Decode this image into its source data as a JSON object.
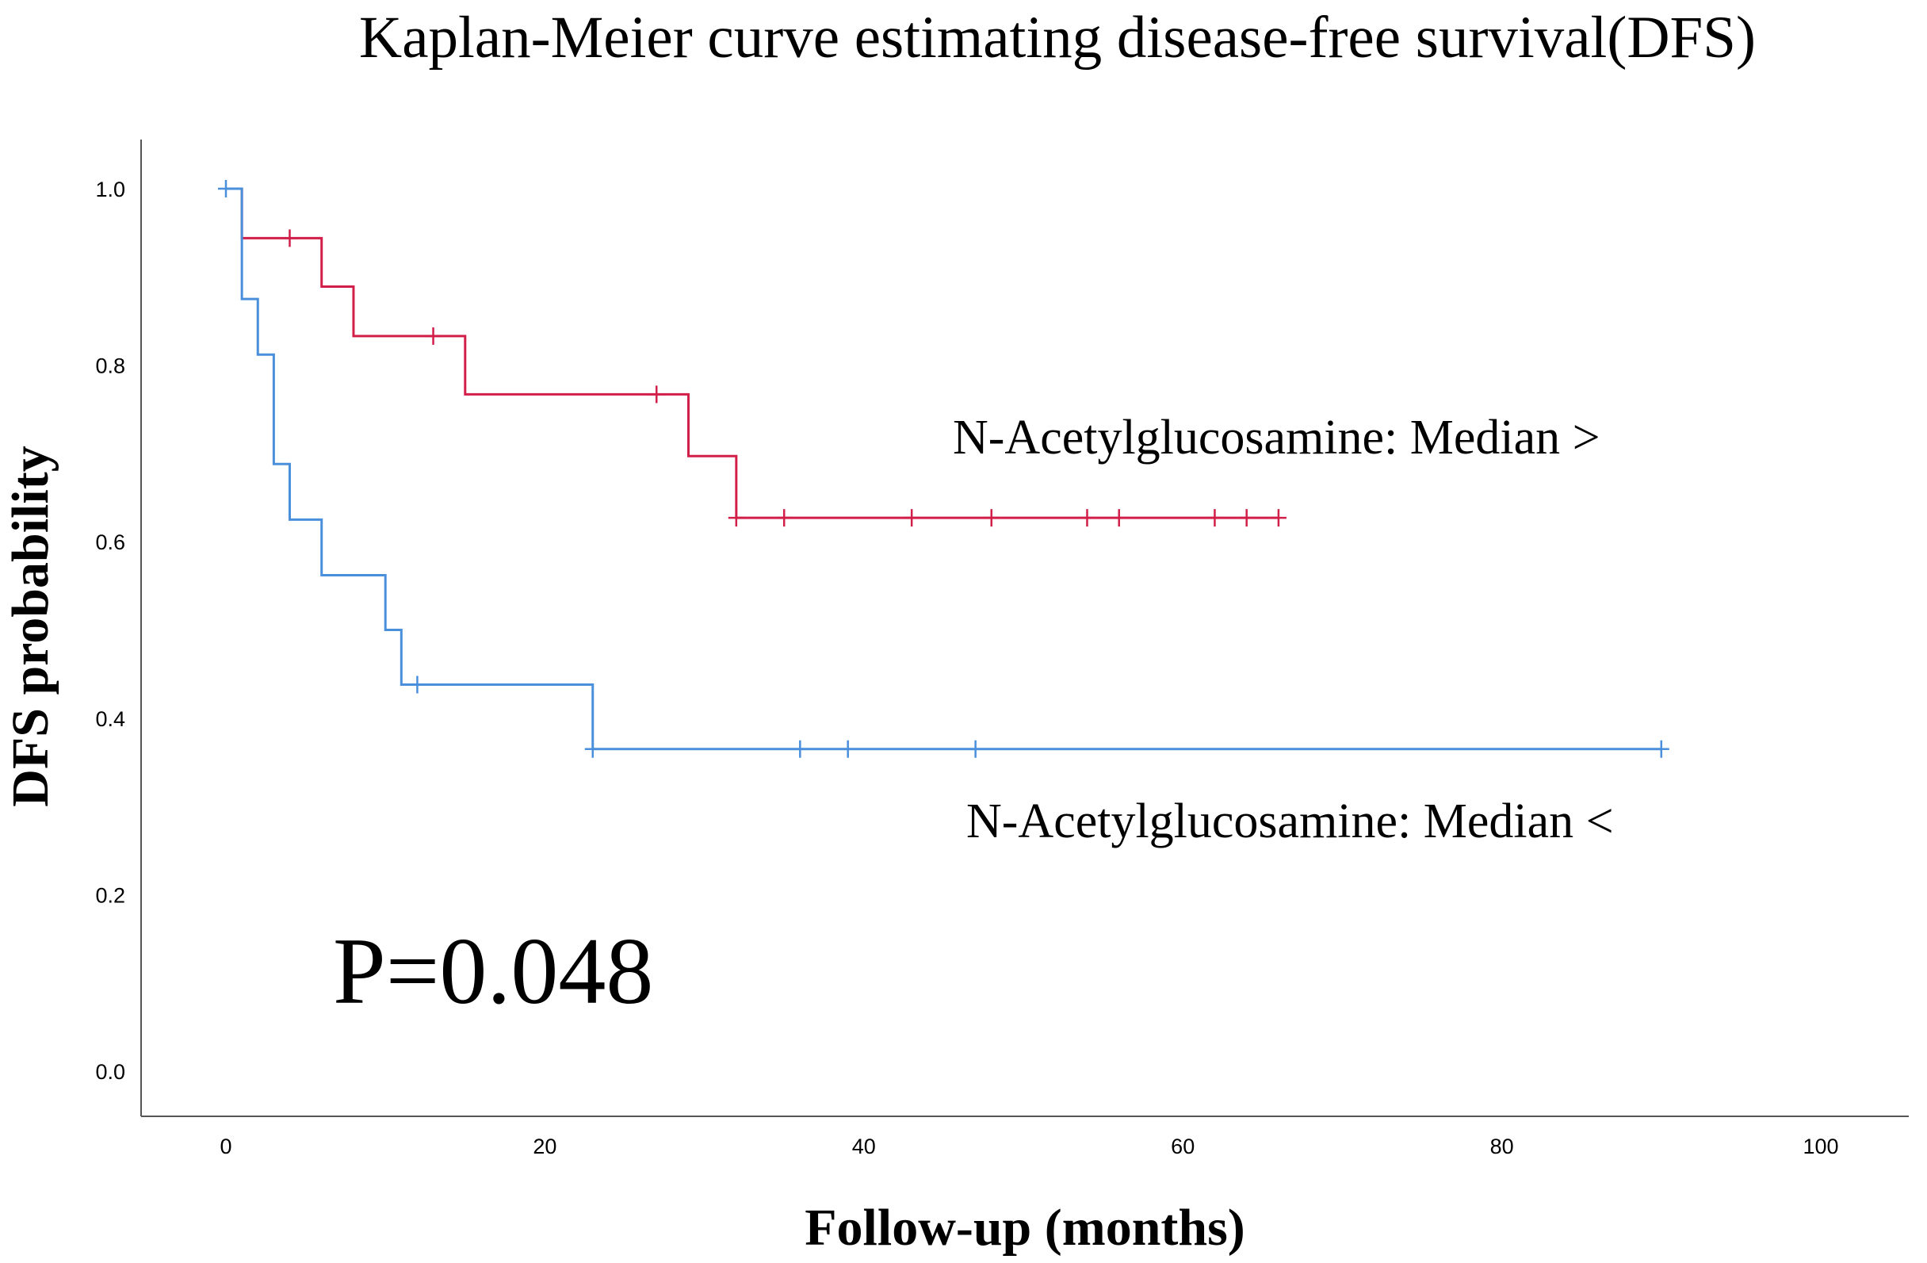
{
  "chart_data": {
    "type": "line",
    "subtype": "kaplan-meier",
    "title": "Kaplan-Meier curve estimating disease-free survival(DFS)",
    "xlabel": "Follow-up (months)",
    "ylabel": "DFS probability",
    "xlim": [
      0,
      100
    ],
    "ylim": [
      0,
      1.0
    ],
    "x_ticks": [
      0,
      20,
      40,
      60,
      80,
      100
    ],
    "y_ticks": [
      0.0,
      0.2,
      0.4,
      0.6,
      0.8,
      1.0
    ],
    "y_tick_labels": [
      "0.0",
      "0.2",
      "0.4",
      "0.6",
      "0.8",
      "1.0"
    ],
    "grid": false,
    "annotation": "P=0.048",
    "series": [
      {
        "name": "N-Acetylglucosamine: Median >",
        "color": "#d21f4a",
        "steps": [
          [
            0,
            1.0
          ],
          [
            1,
            0.944
          ],
          [
            6,
            0.889
          ],
          [
            8,
            0.833
          ],
          [
            15,
            0.767
          ],
          [
            29,
            0.697
          ],
          [
            32,
            0.627
          ],
          [
            66,
            0.627
          ]
        ],
        "censored": [
          [
            4,
            0.944
          ],
          [
            13,
            0.833
          ],
          [
            27,
            0.767
          ],
          [
            32,
            0.627
          ],
          [
            35,
            0.627
          ],
          [
            43,
            0.627
          ],
          [
            48,
            0.627
          ],
          [
            54,
            0.627
          ],
          [
            56,
            0.627
          ],
          [
            62,
            0.627
          ],
          [
            64,
            0.627
          ],
          [
            66,
            0.627
          ]
        ]
      },
      {
        "name": "N-Acetylglucosamine: Median <",
        "color": "#4a8fdc",
        "steps": [
          [
            0,
            1.0
          ],
          [
            1,
            0.875
          ],
          [
            2,
            0.812
          ],
          [
            3,
            0.688
          ],
          [
            4,
            0.625
          ],
          [
            6,
            0.562
          ],
          [
            10,
            0.5
          ],
          [
            11,
            0.438
          ],
          [
            23,
            0.365
          ],
          [
            90,
            0.365
          ]
        ],
        "censored": [
          [
            0,
            1.0
          ],
          [
            12,
            0.438
          ],
          [
            23,
            0.365
          ],
          [
            36,
            0.365
          ],
          [
            39,
            0.365
          ],
          [
            47,
            0.365
          ],
          [
            90,
            0.365
          ]
        ]
      }
    ]
  }
}
